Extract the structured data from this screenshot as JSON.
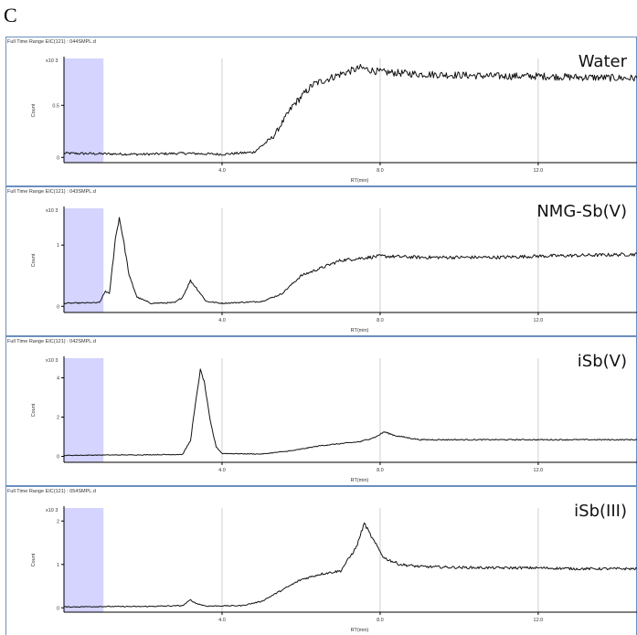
{
  "figure_label": "C",
  "chart_data": [
    {
      "type": "line",
      "header": "Full Time Range EIC(121) : 044SMPL.d",
      "label": "Water",
      "y_multiplier": "x10 3",
      "ylabel": "Count",
      "xlabel": "RT(min)",
      "xlim": [
        0,
        14.5
      ],
      "ylim": [
        -0.05,
        0.95
      ],
      "yticks": [
        0,
        0.5
      ],
      "ytick_labels": [
        "0",
        "0.5"
      ],
      "xticks": [
        4,
        8,
        12
      ],
      "xtick_labels": [
        "4.0",
        "8.0",
        "12.0"
      ],
      "shaded_x": [
        0,
        1
      ],
      "noise": 0.025,
      "points": [
        [
          0,
          0.04
        ],
        [
          1,
          0.035
        ],
        [
          2,
          0.03
        ],
        [
          3,
          0.04
        ],
        [
          4,
          0.03
        ],
        [
          4.8,
          0.05
        ],
        [
          5.3,
          0.2
        ],
        [
          5.8,
          0.5
        ],
        [
          6.3,
          0.7
        ],
        [
          7,
          0.8
        ],
        [
          7.5,
          0.86
        ],
        [
          8,
          0.82
        ],
        [
          9,
          0.8
        ],
        [
          10,
          0.79
        ],
        [
          11,
          0.78
        ],
        [
          12,
          0.78
        ],
        [
          13,
          0.77
        ],
        [
          14.5,
          0.76
        ]
      ]
    },
    {
      "type": "line",
      "header": "Full Time Range EIC(121) : 043SMPL.d",
      "label": "NMG-Sb(V)",
      "y_multiplier": "x10 3",
      "ylabel": "Count",
      "xlabel": "RT(min)",
      "xlim": [
        0,
        14.5
      ],
      "ylim": [
        -0.1,
        1.6
      ],
      "yticks": [
        0,
        1
      ],
      "ytick_labels": [
        "0",
        "1"
      ],
      "xticks": [
        4,
        8,
        12
      ],
      "xtick_labels": [
        "4.0",
        "8.0",
        "12.0"
      ],
      "shaded_x": [
        0,
        1
      ],
      "noise": 0.02,
      "points": [
        [
          0,
          0.05
        ],
        [
          0.9,
          0.06
        ],
        [
          1.05,
          0.25
        ],
        [
          1.15,
          0.2
        ],
        [
          1.3,
          1.1
        ],
        [
          1.4,
          1.45
        ],
        [
          1.5,
          1.1
        ],
        [
          1.65,
          0.5
        ],
        [
          1.85,
          0.15
        ],
        [
          2.2,
          0.05
        ],
        [
          2.8,
          0.06
        ],
        [
          3,
          0.15
        ],
        [
          3.2,
          0.42
        ],
        [
          3.35,
          0.3
        ],
        [
          3.6,
          0.08
        ],
        [
          4,
          0.05
        ],
        [
          5,
          0.08
        ],
        [
          5.5,
          0.2
        ],
        [
          6,
          0.5
        ],
        [
          7,
          0.75
        ],
        [
          8,
          0.82
        ],
        [
          9,
          0.8
        ],
        [
          10,
          0.8
        ],
        [
          11,
          0.8
        ],
        [
          12,
          0.82
        ],
        [
          13,
          0.83
        ],
        [
          14.5,
          0.85
        ]
      ]
    },
    {
      "type": "line",
      "header": "Full Time Range EIC(121) : 042SMPL.d",
      "label": "iSb(V)",
      "y_multiplier": "x10 3",
      "ylabel": "Count",
      "xlabel": "RT(min)",
      "xlim": [
        0,
        14.5
      ],
      "ylim": [
        -0.3,
        5
      ],
      "yticks": [
        0,
        2,
        4
      ],
      "ytick_labels": [
        "0",
        "2",
        "4"
      ],
      "xticks": [
        4,
        8,
        12
      ],
      "xtick_labels": [
        "4.0",
        "8.0",
        "12.0"
      ],
      "shaded_x": [
        0,
        1
      ],
      "noise": 0.04,
      "points": [
        [
          0,
          0.05
        ],
        [
          1,
          0.07
        ],
        [
          2,
          0.08
        ],
        [
          3,
          0.1
        ],
        [
          3.2,
          0.8
        ],
        [
          3.35,
          3
        ],
        [
          3.45,
          4.4
        ],
        [
          3.55,
          3.8
        ],
        [
          3.7,
          1.8
        ],
        [
          3.85,
          0.5
        ],
        [
          4,
          0.15
        ],
        [
          5,
          0.12
        ],
        [
          5.8,
          0.3
        ],
        [
          6.5,
          0.55
        ],
        [
          7.5,
          0.75
        ],
        [
          7.9,
          1
        ],
        [
          8.1,
          1.25
        ],
        [
          8.4,
          1.05
        ],
        [
          9,
          0.85
        ],
        [
          10,
          0.85
        ],
        [
          11,
          0.85
        ],
        [
          12,
          0.85
        ],
        [
          13,
          0.85
        ],
        [
          14.5,
          0.85
        ]
      ]
    },
    {
      "type": "line",
      "header": "Full Time Range EIC(121) : 054SMPL.d",
      "label": "iSb(III)",
      "y_multiplier": "x10 3",
      "ylabel": "Count",
      "xlabel": "RT(min)",
      "xlim": [
        0,
        14.5
      ],
      "ylim": [
        -0.1,
        2.3
      ],
      "yticks": [
        0,
        1,
        2
      ],
      "ytick_labels": [
        "0",
        "1",
        "2"
      ],
      "xticks": [
        4,
        8,
        12
      ],
      "xtick_labels": [
        "4.0",
        "8.0",
        "12.0"
      ],
      "shaded_x": [
        0,
        1
      ],
      "noise": 0.025,
      "points": [
        [
          0,
          0.02
        ],
        [
          1,
          0.03
        ],
        [
          2,
          0.03
        ],
        [
          3,
          0.05
        ],
        [
          3.2,
          0.18
        ],
        [
          3.35,
          0.1
        ],
        [
          3.6,
          0.04
        ],
        [
          4.5,
          0.05
        ],
        [
          5,
          0.15
        ],
        [
          5.5,
          0.4
        ],
        [
          6,
          0.65
        ],
        [
          6.5,
          0.78
        ],
        [
          7,
          0.85
        ],
        [
          7.4,
          1.4
        ],
        [
          7.6,
          1.95
        ],
        [
          7.8,
          1.6
        ],
        [
          8.1,
          1.15
        ],
        [
          8.5,
          1
        ],
        [
          9,
          0.95
        ],
        [
          10,
          0.93
        ],
        [
          11,
          0.92
        ],
        [
          12,
          0.92
        ],
        [
          13,
          0.9
        ],
        [
          14.5,
          0.9
        ]
      ]
    }
  ]
}
